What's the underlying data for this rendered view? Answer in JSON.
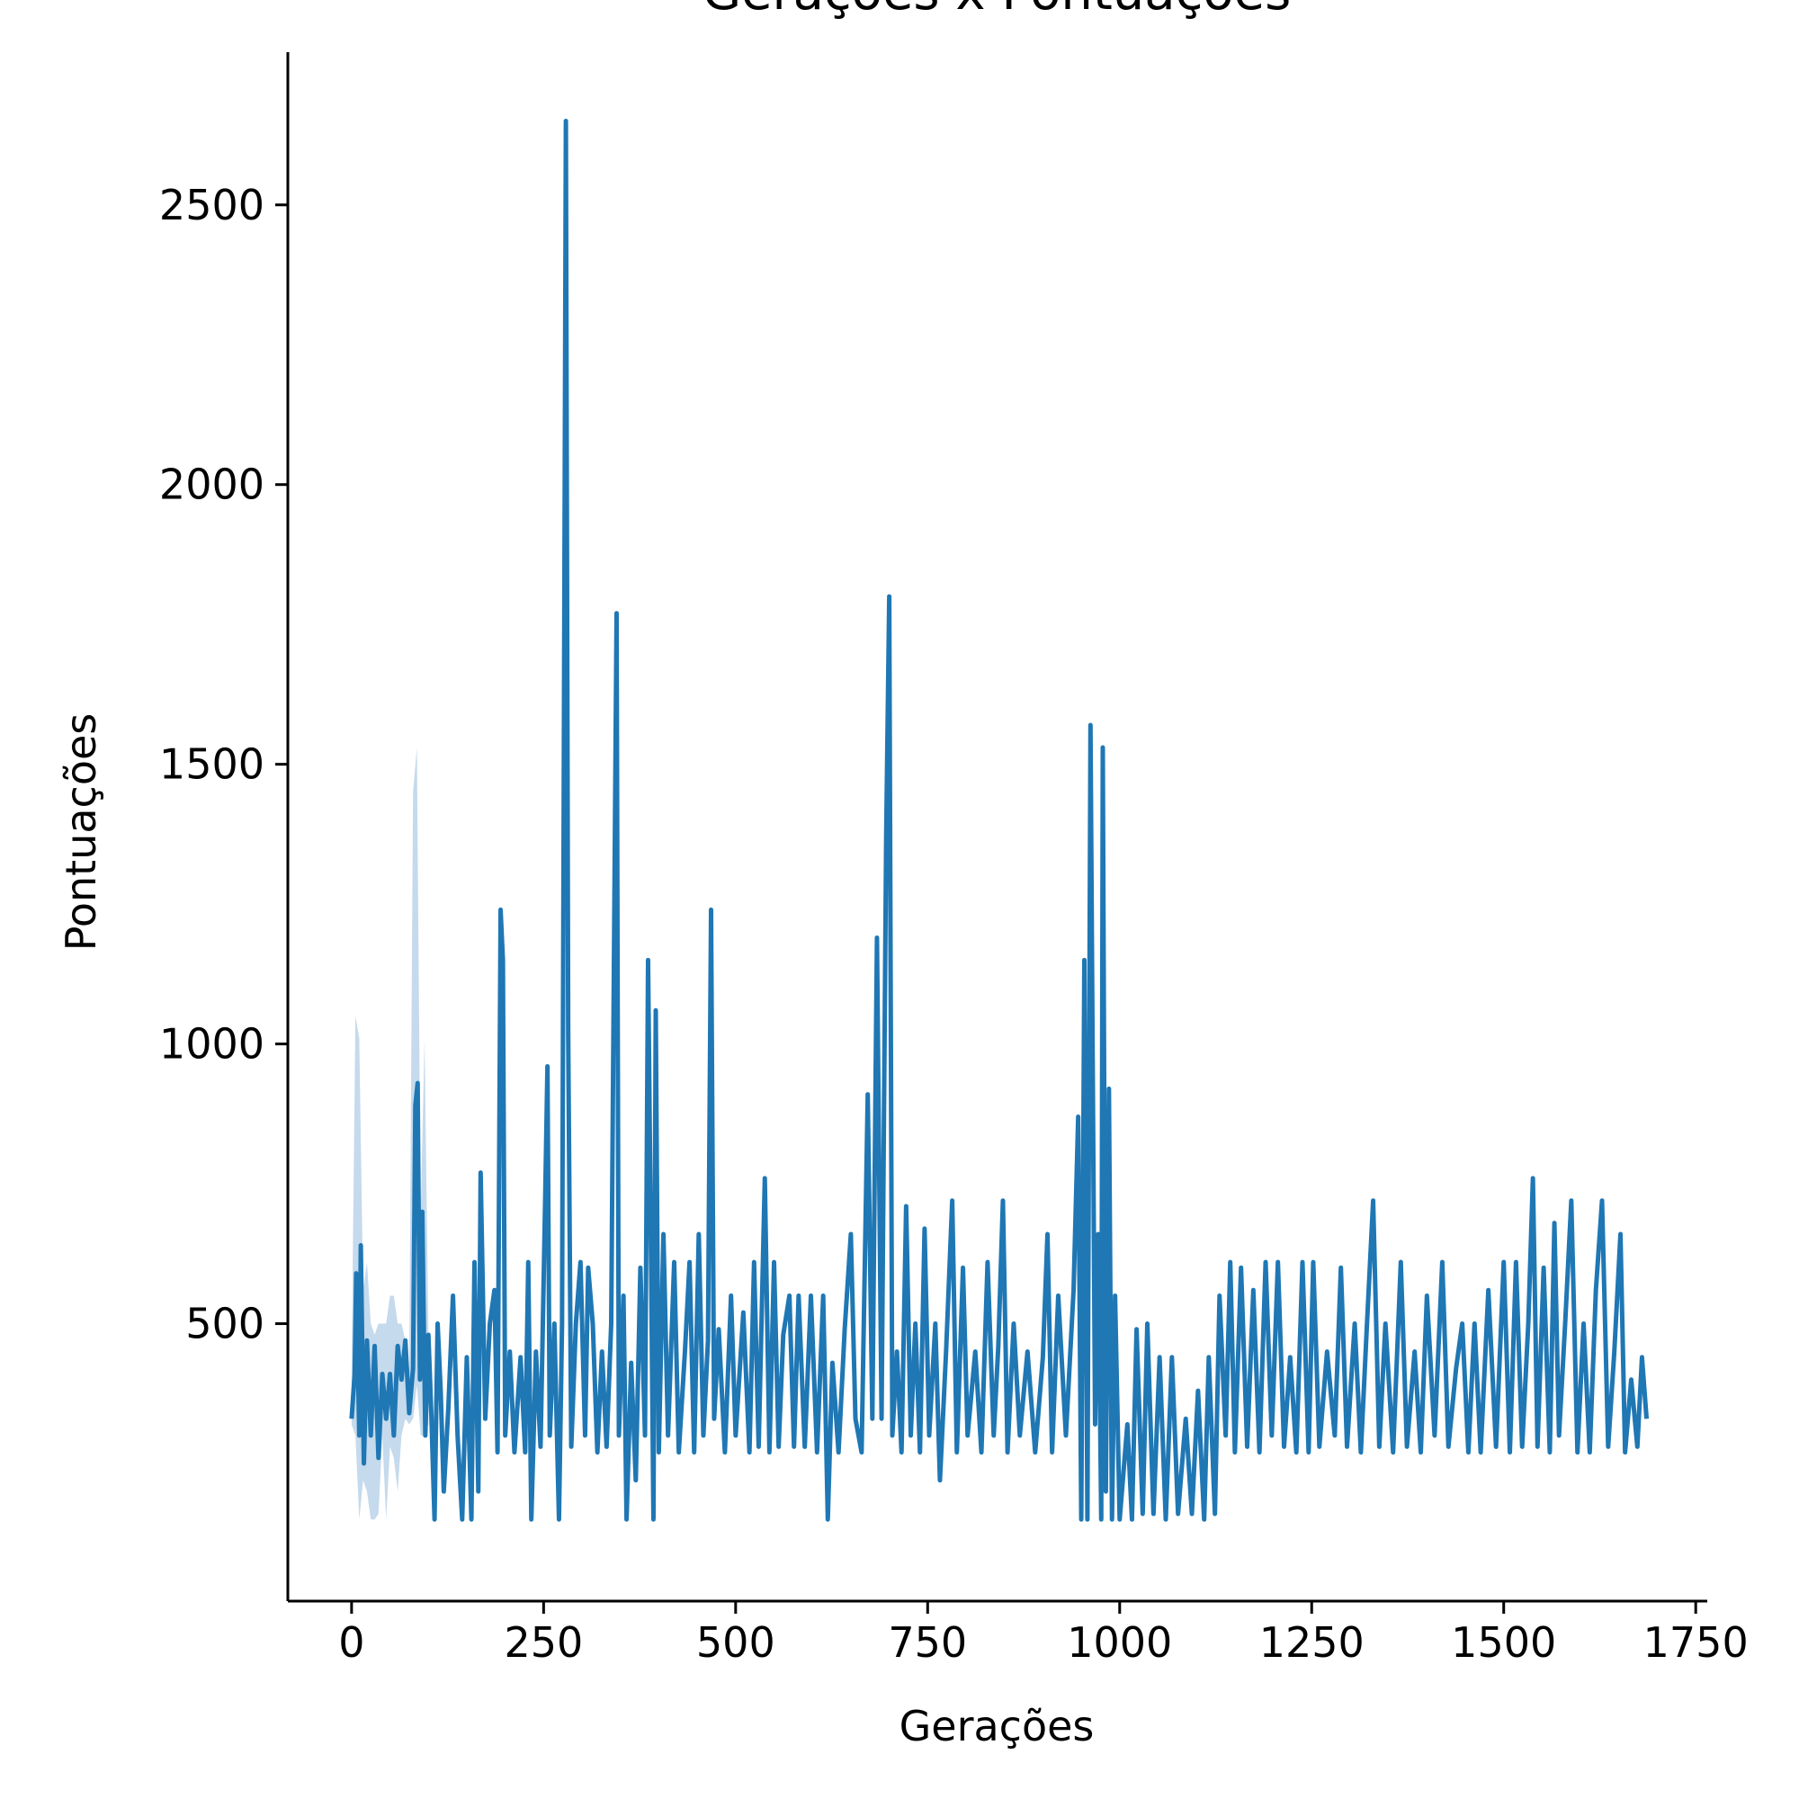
{
  "chart_data": {
    "type": "line",
    "title": "Gerações x Pontuações",
    "xlabel": "Gerações",
    "ylabel": "Pontuações",
    "xlim": [
      -83,
      1765
    ],
    "ylim": [
      4,
      2773
    ],
    "xticks": [
      0,
      250,
      500,
      750,
      1000,
      1250,
      1500,
      1750
    ],
    "yticks": [
      500,
      1000,
      1500,
      2000,
      2500
    ],
    "grid": false,
    "band": {
      "color": "#c5daec",
      "x": [
        0,
        5,
        10,
        15,
        20,
        25,
        30,
        35,
        40,
        45,
        50,
        55,
        60,
        65,
        70,
        75,
        80,
        85,
        90,
        95,
        100
      ],
      "lower": [
        320,
        300,
        150,
        220,
        200,
        150,
        150,
        160,
        300,
        150,
        280,
        260,
        200,
        300,
        330,
        320,
        330,
        390,
        300,
        300,
        320
      ],
      "upper": [
        420,
        1050,
        1010,
        560,
        610,
        500,
        480,
        500,
        500,
        500,
        550,
        550,
        500,
        500,
        470,
        420,
        1450,
        1530,
        700,
        1010,
        480
      ]
    },
    "series": [
      {
        "name": "Pontuações",
        "color": "#1f77b4",
        "x": [
          0,
          4,
          6,
          10,
          12,
          16,
          20,
          25,
          30,
          35,
          40,
          45,
          50,
          55,
          60,
          65,
          70,
          75,
          80,
          83,
          86,
          89,
          92,
          96,
          100,
          104,
          108,
          112,
          116,
          120,
          126,
          132,
          138,
          144,
          150,
          156,
          160,
          165,
          168,
          174,
          180,
          186,
          190,
          194,
          197,
          200,
          206,
          212,
          220,
          226,
          230,
          234,
          240,
          246,
          252,
          255,
          258,
          264,
          270,
          274,
          279,
          282,
          286,
          292,
          298,
          304,
          308,
          314,
          320,
          326,
          332,
          338,
          345,
          348,
          354,
          358,
          364,
          370,
          376,
          382,
          386,
          390,
          393,
          396,
          400,
          406,
          412,
          420,
          426,
          434,
          440,
          446,
          452,
          458,
          464,
          468,
          472,
          478,
          486,
          494,
          500,
          510,
          518,
          524,
          530,
          538,
          544,
          550,
          556,
          562,
          570,
          576,
          582,
          590,
          598,
          606,
          614,
          620,
          626,
          634,
          642,
          650,
          656,
          664,
          672,
          678,
          684,
          690,
          696,
          700,
          704,
          710,
          716,
          722,
          728,
          734,
          740,
          746,
          752,
          760,
          766,
          774,
          782,
          788,
          796,
          802,
          812,
          820,
          828,
          836,
          842,
          848,
          854,
          862,
          870,
          880,
          890,
          900,
          906,
          912,
          920,
          930,
          940,
          946,
          950,
          954,
          958,
          962,
          968,
          972,
          976,
          978,
          982,
          986,
          990,
          994,
          1000,
          1010,
          1016,
          1022,
          1030,
          1036,
          1044,
          1052,
          1060,
          1068,
          1076,
          1086,
          1094,
          1102,
          1110,
          1116,
          1124,
          1130,
          1138,
          1144,
          1150,
          1158,
          1166,
          1174,
          1182,
          1190,
          1198,
          1206,
          1214,
          1222,
          1230,
          1238,
          1246,
          1252,
          1260,
          1270,
          1280,
          1288,
          1296,
          1306,
          1314,
          1322,
          1330,
          1338,
          1346,
          1356,
          1366,
          1374,
          1384,
          1392,
          1400,
          1410,
          1420,
          1428,
          1438,
          1446,
          1454,
          1462,
          1470,
          1480,
          1490,
          1500,
          1508,
          1516,
          1524,
          1532,
          1538,
          1544,
          1552,
          1560,
          1566,
          1572,
          1580,
          1588,
          1596,
          1604,
          1612,
          1620,
          1628,
          1636,
          1644,
          1652,
          1658,
          1666,
          1674,
          1680,
          1686
        ],
        "values": [
          330,
          410,
          590,
          300,
          640,
          250,
          470,
          300,
          460,
          260,
          410,
          330,
          410,
          300,
          460,
          400,
          470,
          340,
          420,
          890,
          930,
          400,
          700,
          300,
          480,
          330,
          150,
          500,
          380,
          200,
          350,
          550,
          300,
          150,
          440,
          150,
          610,
          200,
          770,
          330,
          500,
          560,
          270,
          1240,
          1150,
          300,
          450,
          270,
          440,
          270,
          610,
          150,
          450,
          280,
          720,
          960,
          300,
          500,
          150,
          500,
          2650,
          1020,
          280,
          500,
          610,
          300,
          600,
          500,
          270,
          450,
          280,
          500,
          1770,
          300,
          550,
          150,
          430,
          220,
          600,
          300,
          1150,
          600,
          150,
          1060,
          270,
          660,
          300,
          610,
          270,
          450,
          610,
          270,
          660,
          300,
          470,
          1240,
          330,
          490,
          270,
          550,
          300,
          520,
          270,
          610,
          280,
          760,
          270,
          610,
          280,
          480,
          550,
          280,
          550,
          280,
          550,
          270,
          550,
          150,
          430,
          270,
          490,
          660,
          330,
          270,
          910,
          330,
          1190,
          330,
          1370,
          1800,
          300,
          450,
          270,
          710,
          300,
          500,
          270,
          670,
          300,
          500,
          220,
          450,
          720,
          270,
          600,
          300,
          450,
          270,
          610,
          300,
          460,
          720,
          270,
          500,
          300,
          450,
          270,
          440,
          660,
          270,
          550,
          300,
          560,
          870,
          150,
          1150,
          150,
          1570,
          320,
          660,
          150,
          1530,
          200,
          920,
          150,
          550,
          150,
          320,
          150,
          490,
          160,
          500,
          160,
          440,
          150,
          440,
          160,
          330,
          160,
          380,
          150,
          440,
          160,
          550,
          300,
          610,
          270,
          600,
          280,
          560,
          270,
          610,
          300,
          610,
          280,
          440,
          270,
          610,
          270,
          610,
          280,
          450,
          300,
          600,
          280,
          500,
          270,
          500,
          720,
          280,
          500,
          270,
          610,
          280,
          450,
          270,
          550,
          300,
          610,
          280,
          420,
          500,
          270,
          500,
          270,
          560,
          280,
          610,
          270,
          610,
          280,
          500,
          760,
          280,
          600,
          270,
          680,
          300,
          500,
          720,
          270,
          500,
          270,
          560,
          720,
          280,
          450,
          660,
          270,
          400,
          280,
          440,
          330
        ]
      }
    ]
  }
}
